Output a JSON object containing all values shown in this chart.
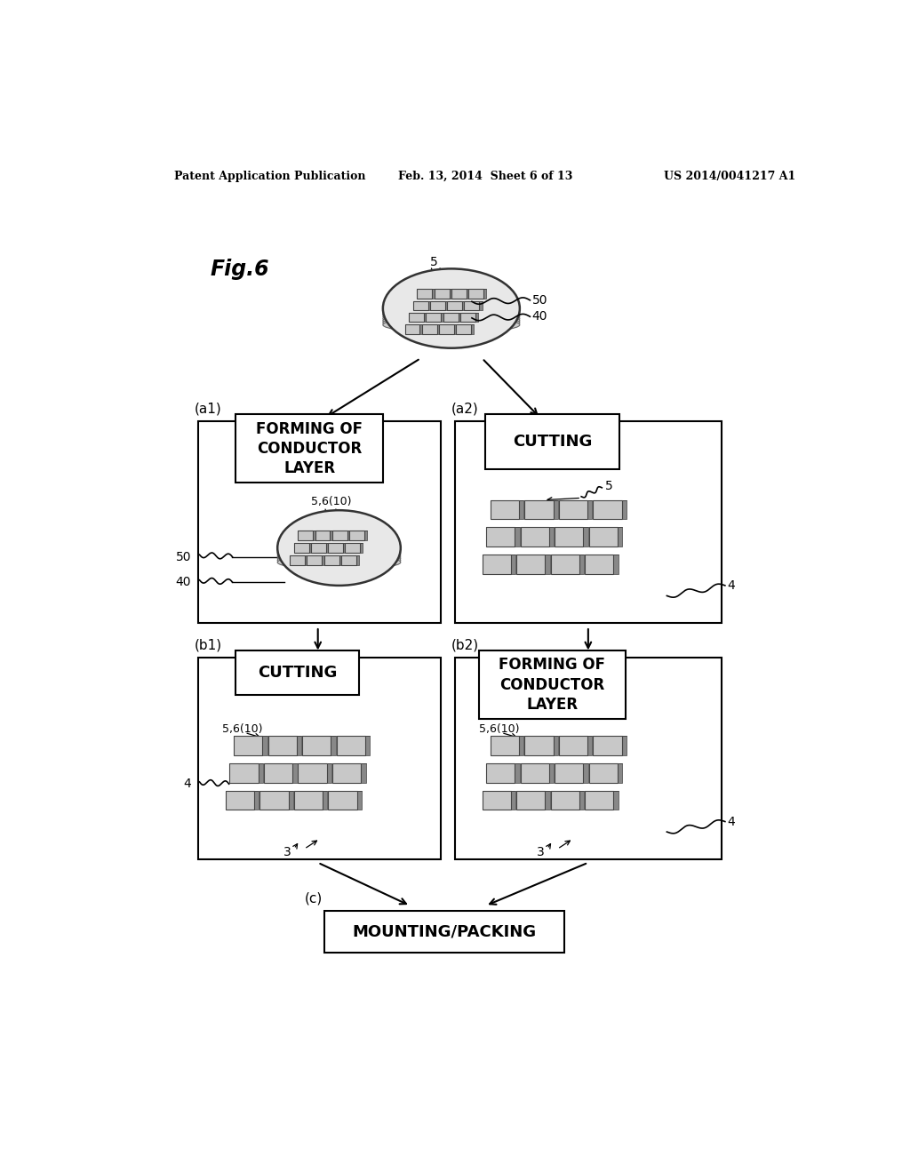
{
  "bg_color": "#ffffff",
  "header_left": "Patent Application Publication",
  "header_center": "Feb. 13, 2014  Sheet 6 of 13",
  "header_right": "US 2014/0041217 A1",
  "fig_label": "Fig.6",
  "box_a1_title": "FORMING OF\nCONDUCTOR\nLAYER",
  "box_a1_label": "(a1)",
  "box_a2_title": "CUTTING",
  "box_a2_label": "(a2)",
  "box_b1_title": "CUTTING",
  "box_b1_label": "(b1)",
  "box_b2_title": "FORMING OF\nCONDUCTOR\nLAYER",
  "box_b2_label": "(b2)",
  "box_c_title": "MOUNTING/PACKING",
  "box_c_label": "(c)"
}
